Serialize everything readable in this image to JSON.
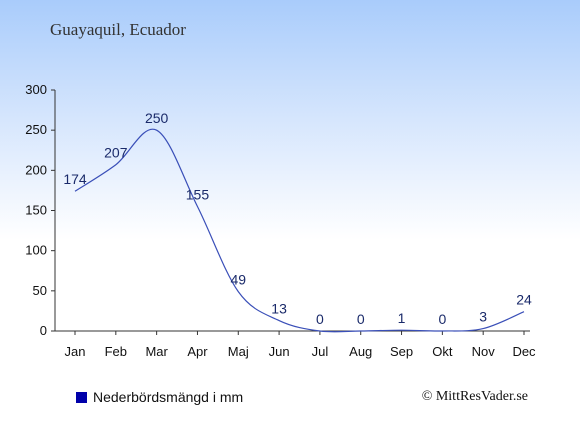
{
  "header": {
    "location": "Guayaquil, Ecuador"
  },
  "legend": {
    "label": "Nederbördsmängd i mm"
  },
  "footer": {
    "credit": "© MittResVader.se"
  },
  "colors": {
    "line": "#3a4fb8",
    "legend": "#0000aa",
    "axis": "#333333"
  },
  "chart_data": {
    "type": "line",
    "categories": [
      "Jan",
      "Feb",
      "Mar",
      "Apr",
      "Maj",
      "Jun",
      "Jul",
      "Aug",
      "Sep",
      "Okt",
      "Nov",
      "Dec"
    ],
    "series": [
      {
        "name": "Nederbördsmängd i mm",
        "values": [
          174,
          207,
          250,
          155,
          49,
          13,
          0,
          0,
          1,
          0,
          3,
          24
        ]
      }
    ],
    "data_labels": [
      "174",
      "207",
      "250",
      "155",
      "49",
      "13",
      "0",
      "0",
      "1",
      "0",
      "3",
      "24"
    ],
    "ylim": [
      0,
      300
    ],
    "yticks": [
      "0",
      "50",
      "100",
      "150",
      "200",
      "250",
      "300"
    ],
    "grid": false,
    "legend_position": "bottom-left"
  }
}
